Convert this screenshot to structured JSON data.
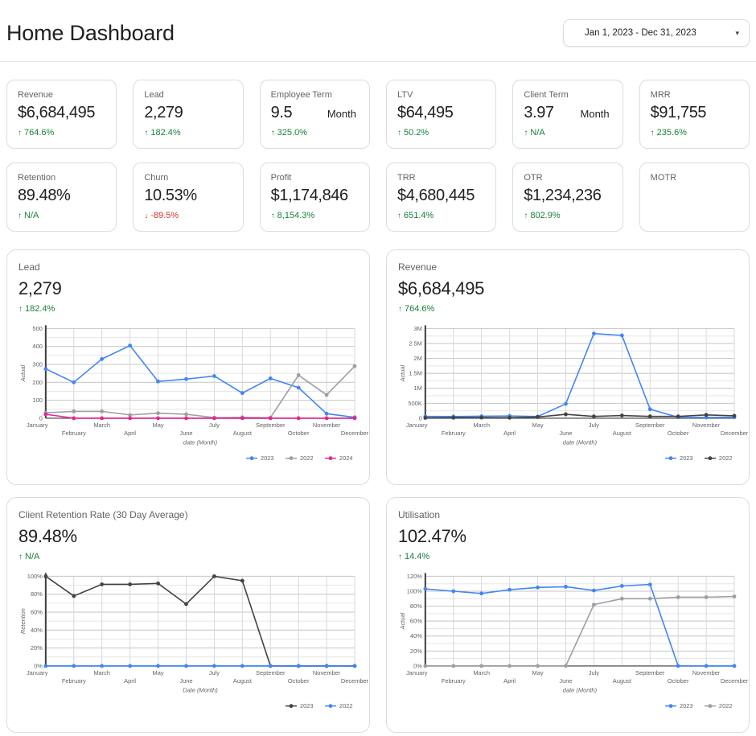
{
  "header": {
    "title": "Home Dashboard",
    "date_range": "Jan 1, 2023 - Dec 31, 2023",
    "caret": "▾"
  },
  "kpis": [
    {
      "label": "Revenue",
      "value": "$6,684,495",
      "delta": "764.6%",
      "delta_dir": "up",
      "arrow": "↑"
    },
    {
      "label": "Lead",
      "value": "2,279",
      "delta": "182.4%",
      "delta_dir": "up",
      "arrow": "↑"
    },
    {
      "label": "Employee Term",
      "value": "9.5",
      "unit": "Month",
      "delta": "325.0%",
      "delta_dir": "up",
      "arrow": "↑"
    },
    {
      "label": "LTV",
      "value": "$64,495",
      "delta": "50.2%",
      "delta_dir": "up",
      "arrow": "↑"
    },
    {
      "label": "Client Term",
      "value": "3.97",
      "unit": "Month",
      "delta": "N/A",
      "delta_dir": "up",
      "arrow": "↑"
    },
    {
      "label": "MRR",
      "value": "$91,755",
      "delta": "235.6%",
      "delta_dir": "up",
      "arrow": "↑"
    },
    {
      "label": "Retention",
      "value": "89.48%",
      "delta": "N/A",
      "delta_dir": "up",
      "arrow": "↑"
    },
    {
      "label": "Churn",
      "value": "10.53%",
      "delta": "-89.5%",
      "delta_dir": "down",
      "arrow": "↓"
    },
    {
      "label": "Profit",
      "value": "$1,174,846",
      "delta": "8,154.3%",
      "delta_dir": "up",
      "arrow": "↑"
    },
    {
      "label": "TRR",
      "value": "$4,680,445",
      "delta": "651.4%",
      "delta_dir": "up",
      "arrow": "↑"
    },
    {
      "label": "OTR",
      "value": "$1,234,236",
      "delta": "802.9%",
      "delta_dir": "up",
      "arrow": "↑"
    },
    {
      "label": "MOTR"
    }
  ],
  "panels": [
    {
      "label": "Lead",
      "value": "2,279",
      "delta": "182.4%",
      "delta_dir": "up",
      "arrow": "↑"
    },
    {
      "label": "Revenue",
      "value": "$6,684,495",
      "delta": "764.6%",
      "delta_dir": "up",
      "arrow": "↑"
    },
    {
      "label": "Client Retention Rate (30 Day Average)",
      "value": "89.48%",
      "delta": "N/A",
      "delta_dir": "up",
      "arrow": "↑"
    },
    {
      "label": "Utilisation",
      "value": "102.47%",
      "delta": "14.4%",
      "delta_dir": "up",
      "arrow": "↑"
    }
  ],
  "chart_data": [
    {
      "type": "line",
      "title": "Lead",
      "x": [
        "January",
        "February",
        "March",
        "April",
        "May",
        "June",
        "July",
        "August",
        "September",
        "October",
        "November",
        "December"
      ],
      "xlabel": "date (Month)",
      "ylabel": "Actual",
      "ylim": [
        0,
        500
      ],
      "minor_step": 50,
      "yticks": [
        {
          "v": 0,
          "label": "0"
        },
        {
          "v": 100,
          "label": "100"
        },
        {
          "v": 200,
          "label": "200"
        },
        {
          "v": 300,
          "label": "300"
        },
        {
          "v": 400,
          "label": "400"
        },
        {
          "v": 500,
          "label": "500"
        }
      ],
      "grid": true,
      "legend_position": "bottom-right",
      "series": [
        {
          "name": "2023",
          "color": "#4285f4",
          "values": [
            275,
            200,
            330,
            405,
            205,
            218,
            235,
            140,
            222,
            170,
            25,
            5
          ]
        },
        {
          "name": "2022",
          "color": "#9aa0a6",
          "values": [
            30,
            38,
            38,
            18,
            28,
            22,
            3,
            5,
            3,
            240,
            130,
            290
          ]
        },
        {
          "name": "2024",
          "color": "#e52592",
          "values": [
            22,
            0,
            0,
            0,
            0,
            0,
            0,
            0,
            0,
            0,
            0,
            0
          ]
        }
      ]
    },
    {
      "type": "line",
      "title": "Revenue",
      "x": [
        "January",
        "February",
        "March",
        "April",
        "May",
        "June",
        "July",
        "August",
        "September",
        "October",
        "November",
        "December"
      ],
      "xlabel": "date (Month)",
      "ylabel": "Actual",
      "ylim": [
        0,
        3000000
      ],
      "minor_step": 250000,
      "yticks": [
        {
          "v": 0,
          "label": "0"
        },
        {
          "v": 500000,
          "label": "500K"
        },
        {
          "v": 1000000,
          "label": "1M"
        },
        {
          "v": 1500000,
          "label": "1.5M"
        },
        {
          "v": 2000000,
          "label": "2M"
        },
        {
          "v": 2500000,
          "label": "2.5M"
        },
        {
          "v": 3000000,
          "label": "3M"
        }
      ],
      "grid": true,
      "legend_position": "bottom-right",
      "series": [
        {
          "name": "2023",
          "color": "#4285f4",
          "values": [
            60000,
            55000,
            65000,
            75000,
            55000,
            480000,
            2830000,
            2770000,
            300000,
            30000,
            25000,
            30000
          ]
        },
        {
          "name": "2022",
          "color": "#424242",
          "values": [
            10000,
            15000,
            20000,
            15000,
            40000,
            130000,
            60000,
            90000,
            60000,
            60000,
            110000,
            80000
          ]
        }
      ]
    },
    {
      "type": "line",
      "title": "Client Retention Rate (30 Day Average)",
      "x": [
        "January",
        "February",
        "March",
        "April",
        "May",
        "June",
        "July",
        "August",
        "September",
        "October",
        "November",
        "December"
      ],
      "xlabel": "Date (Month)",
      "ylabel": "Retention",
      "ylim": [
        0,
        100
      ],
      "minor_step": 10,
      "yticks": [
        {
          "v": 0,
          "label": "0%"
        },
        {
          "v": 20,
          "label": "20%"
        },
        {
          "v": 40,
          "label": "40%"
        },
        {
          "v": 60,
          "label": "60%"
        },
        {
          "v": 80,
          "label": "80%"
        },
        {
          "v": 100,
          "label": "100%"
        }
      ],
      "grid": true,
      "legend_position": "bottom-right",
      "series": [
        {
          "name": "2023",
          "color": "#424242",
          "values": [
            100,
            78,
            91,
            91,
            92,
            69,
            100,
            95,
            0,
            0,
            0,
            0
          ]
        },
        {
          "name": "2022",
          "color": "#4285f4",
          "values": [
            0,
            0,
            0,
            0,
            0,
            0,
            0,
            0,
            0,
            0,
            0,
            0
          ]
        }
      ]
    },
    {
      "type": "line",
      "title": "Utilisation",
      "x": [
        "January",
        "February",
        "March",
        "April",
        "May",
        "June",
        "July",
        "August",
        "September",
        "October",
        "November",
        "December"
      ],
      "xlabel": "date (Month)",
      "ylabel": "Actual",
      "ylim": [
        0,
        120
      ],
      "minor_step": 10,
      "yticks": [
        {
          "v": 0,
          "label": "0%"
        },
        {
          "v": 20,
          "label": "20%"
        },
        {
          "v": 40,
          "label": "40%"
        },
        {
          "v": 60,
          "label": "60%"
        },
        {
          "v": 80,
          "label": "80%"
        },
        {
          "v": 100,
          "label": "100%"
        },
        {
          "v": 120,
          "label": "120%"
        }
      ],
      "grid": true,
      "legend_position": "bottom-right",
      "series": [
        {
          "name": "2023",
          "color": "#4285f4",
          "values": [
            103,
            100,
            97,
            102,
            105,
            106,
            101,
            107,
            109,
            0,
            0,
            0
          ]
        },
        {
          "name": "2022",
          "color": "#9aa0a6",
          "values": [
            0,
            0,
            0,
            0,
            0,
            0,
            82,
            90,
            90,
            92,
            92,
            93
          ]
        }
      ]
    }
  ]
}
